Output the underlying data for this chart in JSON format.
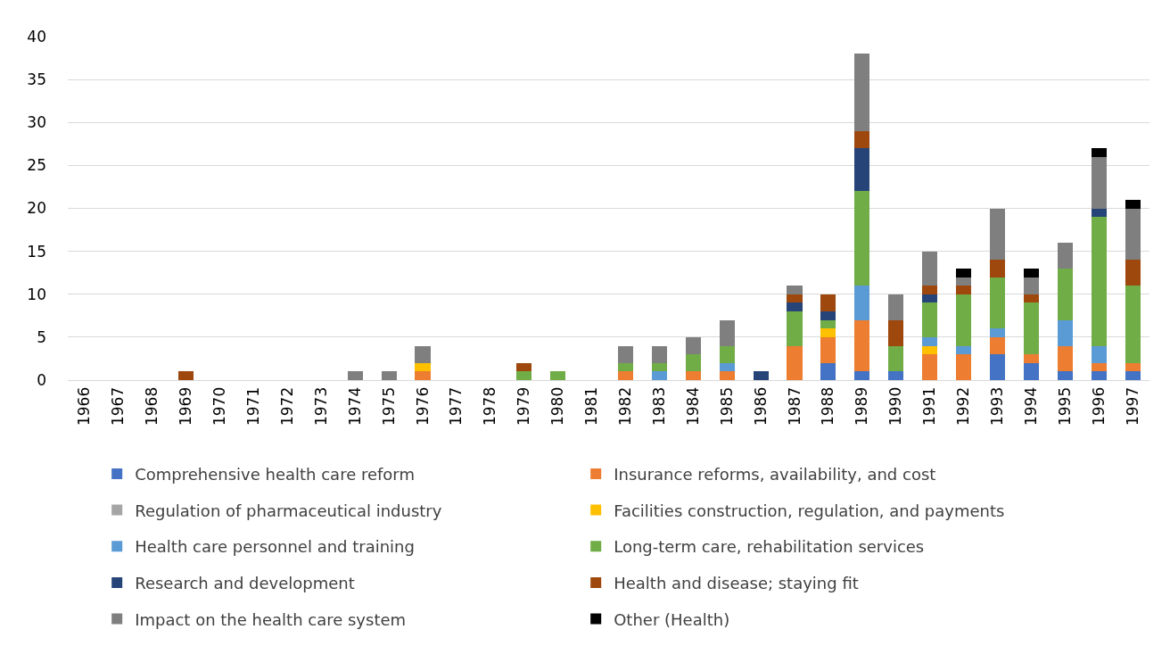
{
  "chart_data": {
    "type": "bar",
    "stacked": true,
    "categories": [
      "1966",
      "1967",
      "1968",
      "1969",
      "1970",
      "1971",
      "1972",
      "1973",
      "1974",
      "1975",
      "1976",
      "1977",
      "1978",
      "1979",
      "1980",
      "1981",
      "1982",
      "1983",
      "1984",
      "1985",
      "1986",
      "1987",
      "1988",
      "1989",
      "1990",
      "1991",
      "1992",
      "1993",
      "1994",
      "1995",
      "1996",
      "1997"
    ],
    "series": [
      {
        "name": "Comprehensive health care reform",
        "color": "#4472c4",
        "values": [
          0,
          0,
          0,
          0,
          0,
          0,
          0,
          0,
          0,
          0,
          0,
          0,
          0,
          0,
          0,
          0,
          0,
          0,
          0,
          0,
          0,
          0,
          2,
          1,
          1,
          0,
          0,
          3,
          2,
          1,
          1,
          1
        ]
      },
      {
        "name": "Insurance reforms, availability, and cost",
        "color": "#ed7d31",
        "values": [
          0,
          0,
          0,
          0,
          0,
          0,
          0,
          0,
          0,
          0,
          1,
          0,
          0,
          0,
          0,
          0,
          1,
          0,
          1,
          1,
          0,
          4,
          3,
          6,
          0,
          3,
          3,
          2,
          1,
          3,
          1,
          1
        ]
      },
      {
        "name": "Regulation of pharmaceutical industry",
        "color": "#a5a5a5",
        "values": [
          0,
          0,
          0,
          0,
          0,
          0,
          0,
          0,
          0,
          0,
          0,
          0,
          0,
          0,
          0,
          0,
          0,
          0,
          0,
          0,
          0,
          0,
          0,
          0,
          0,
          0,
          0,
          0,
          0,
          0,
          0,
          0
        ]
      },
      {
        "name": "Facilities construction, regulation, and payments",
        "color": "#ffc000",
        "values": [
          0,
          0,
          0,
          0,
          0,
          0,
          0,
          0,
          0,
          0,
          1,
          0,
          0,
          0,
          0,
          0,
          0,
          0,
          0,
          0,
          0,
          0,
          1,
          0,
          0,
          1,
          0,
          0,
          0,
          0,
          0,
          0
        ]
      },
      {
        "name": "Health care personnel and training",
        "color": "#5b9bd5",
        "values": [
          0,
          0,
          0,
          0,
          0,
          0,
          0,
          0,
          0,
          0,
          0,
          0,
          0,
          0,
          0,
          0,
          0,
          1,
          0,
          1,
          0,
          0,
          0,
          4,
          0,
          1,
          1,
          1,
          0,
          3,
          2,
          0
        ]
      },
      {
        "name": "Long-term care, rehabilitation services",
        "color": "#70ad47",
        "values": [
          0,
          0,
          0,
          0,
          0,
          0,
          0,
          0,
          0,
          0,
          0,
          0,
          0,
          1,
          1,
          0,
          1,
          1,
          2,
          2,
          0,
          4,
          1,
          11,
          3,
          4,
          6,
          6,
          6,
          6,
          15,
          9
        ]
      },
      {
        "name": "Research and development",
        "color": "#264478",
        "values": [
          0,
          0,
          0,
          0,
          0,
          0,
          0,
          0,
          0,
          0,
          0,
          0,
          0,
          0,
          0,
          0,
          0,
          0,
          0,
          0,
          1,
          1,
          1,
          5,
          0,
          1,
          0,
          0,
          0,
          0,
          1,
          0
        ]
      },
      {
        "name": "Health and disease; staying fit",
        "color": "#9e480e",
        "values": [
          0,
          0,
          0,
          1,
          0,
          0,
          0,
          0,
          0,
          0,
          0,
          0,
          0,
          1,
          0,
          0,
          0,
          0,
          0,
          0,
          0,
          1,
          2,
          2,
          3,
          1,
          1,
          2,
          1,
          0,
          0,
          3
        ]
      },
      {
        "name": "Impact on the health care system",
        "color": "#7f7f7f",
        "values": [
          0,
          0,
          0,
          0,
          0,
          0,
          0,
          0,
          1,
          1,
          2,
          0,
          0,
          0,
          0,
          0,
          2,
          2,
          2,
          3,
          0,
          1,
          0,
          9,
          3,
          4,
          1,
          6,
          2,
          3,
          6,
          6
        ]
      },
      {
        "name": "Other (Health)",
        "color": "#000000",
        "values": [
          0,
          0,
          0,
          0,
          0,
          0,
          0,
          0,
          0,
          0,
          0,
          0,
          0,
          0,
          0,
          0,
          0,
          0,
          0,
          0,
          0,
          0,
          0,
          0,
          0,
          0,
          1,
          0,
          1,
          0,
          1,
          1
        ]
      }
    ],
    "ylim": [
      0,
      40
    ],
    "yticks": [
      0,
      5,
      10,
      15,
      20,
      25,
      30,
      35,
      40
    ],
    "grid": "y",
    "legend": "bottom"
  }
}
